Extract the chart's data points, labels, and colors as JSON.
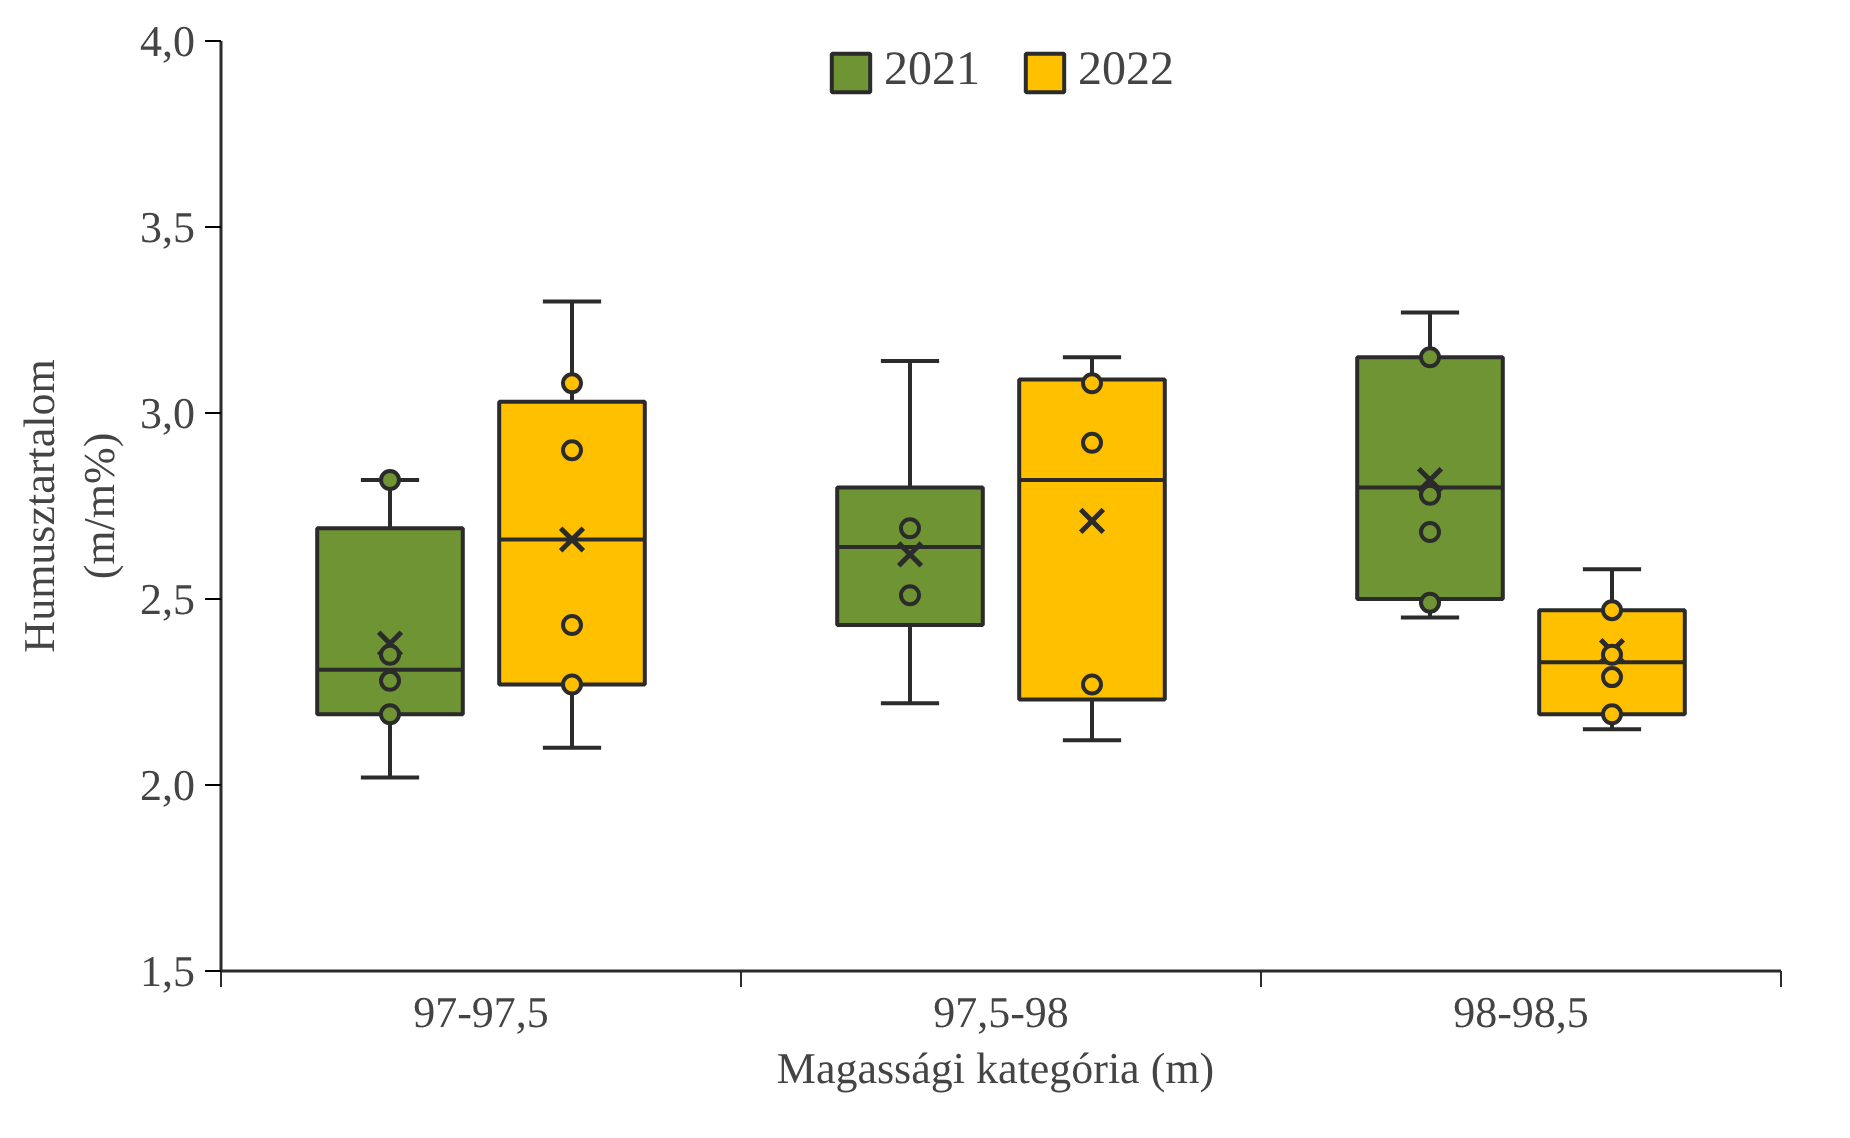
{
  "chart_data": {
    "type": "box",
    "categories": [
      "97-97,5",
      "97,5-98",
      "98-98,5"
    ],
    "xlabel": "Magassági  kategória (m)",
    "ylabel": "Humusztartalom\n(m/m%)",
    "ylim": [
      1.5,
      4.0
    ],
    "yticks": [
      {
        "value": 1.5,
        "label": "1,5"
      },
      {
        "value": 2.0,
        "label": "2,0"
      },
      {
        "value": 2.5,
        "label": "2,5"
      },
      {
        "value": 3.0,
        "label": "3,0"
      },
      {
        "value": 3.5,
        "label": "3,5"
      },
      {
        "value": 4.0,
        "label": "4,0"
      }
    ],
    "grid": false,
    "legend": "top",
    "marker": "circle",
    "series": [
      {
        "name": "2021",
        "color": "#6f9434",
        "boxes": [
          {
            "low": 2.02,
            "q1": 2.19,
            "median": 2.31,
            "q3": 2.69,
            "high": 2.82,
            "mean": 2.38,
            "outliers": [
              2.82,
              2.35,
              2.28,
              2.19
            ]
          },
          {
            "low": 2.22,
            "q1": 2.43,
            "median": 2.64,
            "q3": 2.8,
            "high": 3.14,
            "mean": 2.62,
            "outliers": [
              2.69,
              2.51
            ]
          },
          {
            "low": 2.45,
            "q1": 2.5,
            "median": 2.8,
            "q3": 3.15,
            "high": 3.27,
            "mean": 2.82,
            "outliers": [
              3.15,
              2.78,
              2.68,
              2.49
            ]
          }
        ]
      },
      {
        "name": "2022",
        "color": "#ffc000",
        "boxes": [
          {
            "low": 2.1,
            "q1": 2.27,
            "median": 2.66,
            "q3": 3.03,
            "high": 3.3,
            "mean": 2.66,
            "outliers": [
              3.08,
              2.9,
              2.43,
              2.27
            ]
          },
          {
            "low": 2.12,
            "q1": 2.23,
            "median": 2.82,
            "q3": 3.09,
            "high": 3.15,
            "mean": 2.71,
            "outliers": [
              3.08,
              2.92,
              2.27
            ]
          },
          {
            "low": 2.15,
            "q1": 2.19,
            "median": 2.33,
            "q3": 2.47,
            "high": 2.58,
            "mean": 2.36,
            "outliers": [
              2.47,
              2.35,
              2.29,
              2.19
            ]
          }
        ]
      }
    ]
  }
}
